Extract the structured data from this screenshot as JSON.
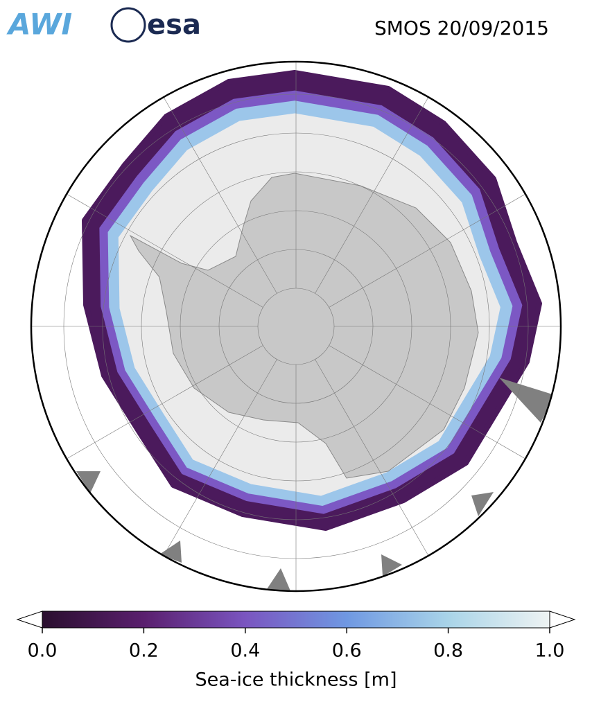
{
  "header": {
    "logos": [
      "AWI",
      "esa"
    ],
    "title": "SMOS 20/09/2015"
  },
  "colorbar": {
    "label": "Sea-ice thickness [m]",
    "lim": [
      0,
      1
    ],
    "ticks": [
      {
        "value": 0,
        "label": "0.0"
      },
      {
        "value": 0.2,
        "label": "0.2"
      },
      {
        "value": 0.4,
        "label": "0.4"
      },
      {
        "value": 0.6,
        "label": "0.6"
      },
      {
        "value": 0.8,
        "label": "0.8"
      },
      {
        "value": 1,
        "label": "1.0"
      }
    ],
    "colors": [
      "#2a0f2e",
      "#5a1f6e",
      "#7a55c0",
      "#6f98e2",
      "#a9d4e8",
      "#eef3f3"
    ]
  }
}
